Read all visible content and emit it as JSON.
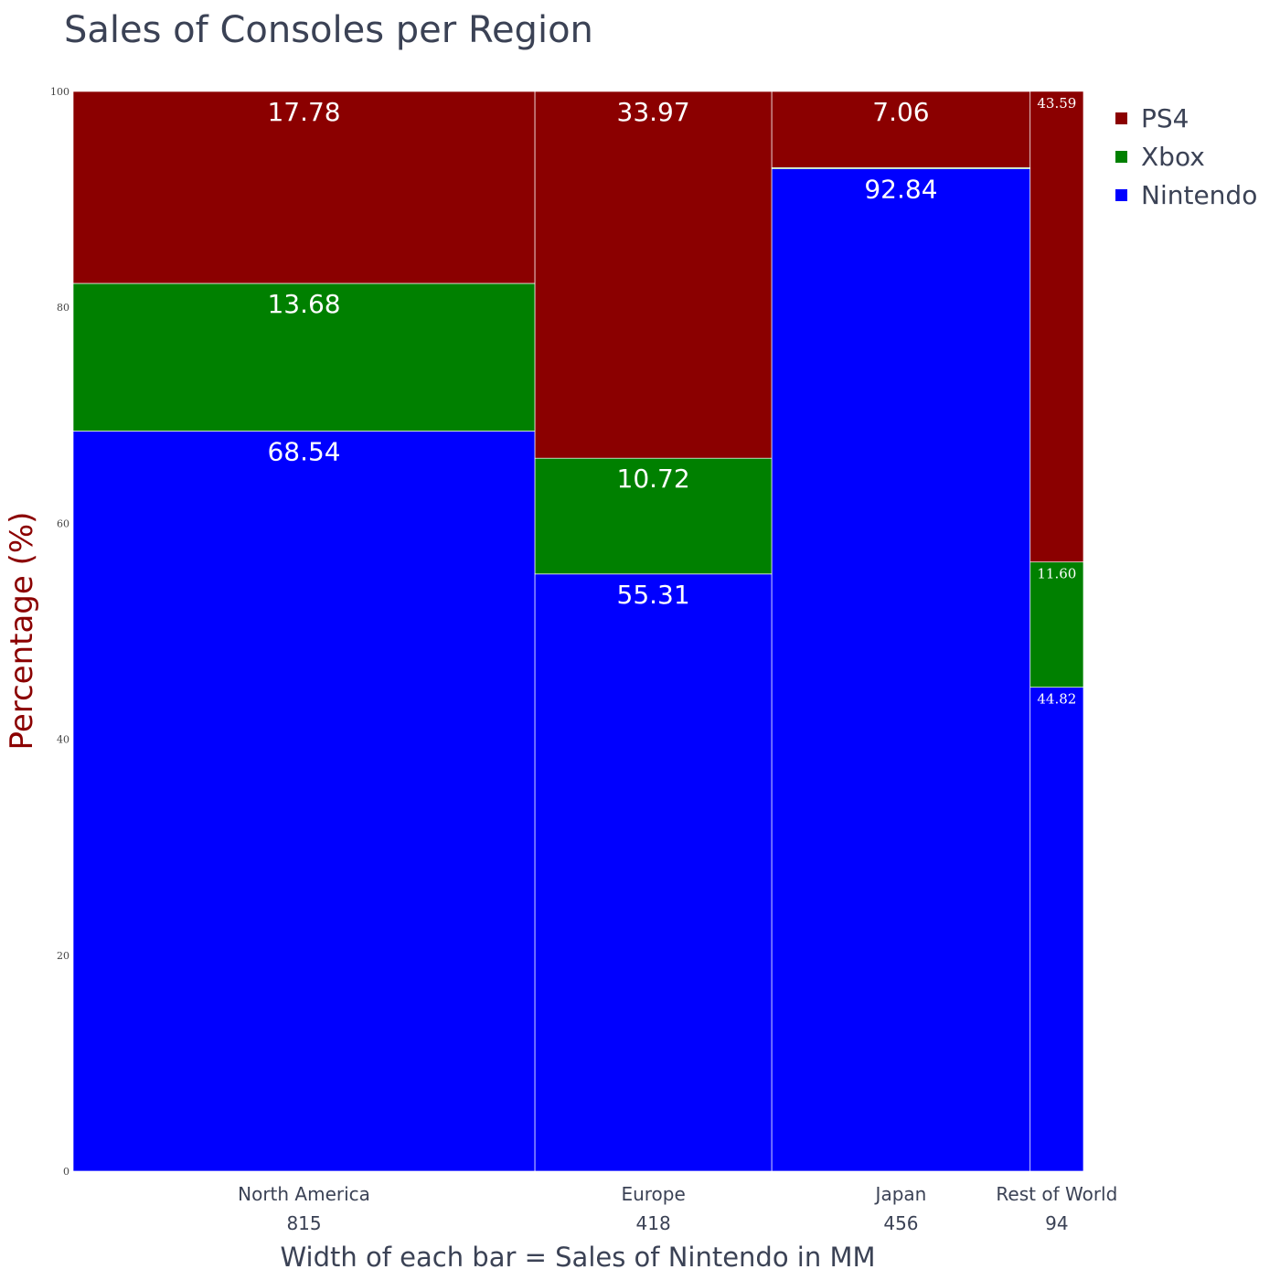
{
  "chart_data": {
    "type": "bar",
    "subtype": "marimekko",
    "title": "Sales of Consoles per Region",
    "xlabel": "Width of each bar = Sales of Nintendo in MM",
    "ylabel": "Percentage (%)",
    "ylim": [
      0,
      100
    ],
    "yticks": [
      0,
      20,
      40,
      60,
      80,
      100
    ],
    "categories": [
      "North America",
      "Europe",
      "Japan",
      "Rest of World"
    ],
    "widths": [
      815,
      418,
      456,
      94
    ],
    "series": [
      {
        "name": "Nintendo",
        "color": "#0000ff",
        "values": [
          68.54,
          55.31,
          92.84,
          44.82
        ],
        "labels": [
          "68.54",
          "55.31",
          "92.84",
          "44.82"
        ]
      },
      {
        "name": "Xbox",
        "color": "#008000",
        "values": [
          13.68,
          10.72,
          0.1,
          11.6
        ],
        "labels": [
          "13.68",
          "10.72",
          "",
          "11.60"
        ]
      },
      {
        "name": "PS4",
        "color": "#8b0000",
        "values": [
          17.78,
          33.97,
          7.06,
          43.59
        ],
        "labels": [
          "17.78",
          "33.97",
          "7.06",
          "43.59"
        ]
      }
    ],
    "legend": {
      "position": "top-right",
      "order": [
        "PS4",
        "Xbox",
        "Nintendo"
      ]
    },
    "grid": false
  }
}
